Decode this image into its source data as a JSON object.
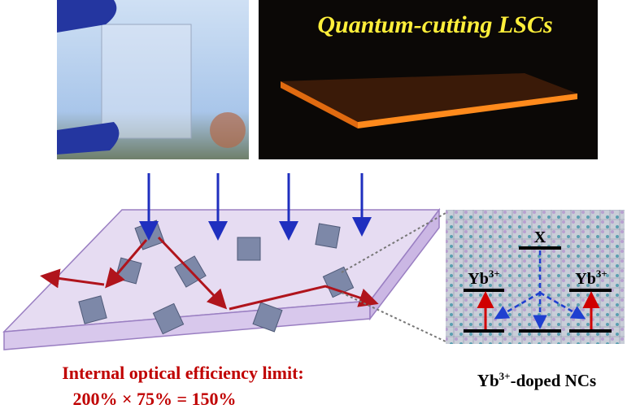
{
  "photo_title": "Quantum-cutting LSCs",
  "energy_diagram": {
    "top_level": "X",
    "left_level": {
      "base": "Yb",
      "sup": "3+"
    },
    "right_level": {
      "base": "Yb",
      "sup": "3+"
    }
  },
  "caption_right": {
    "base": "Yb",
    "sup": "3+",
    "rest": "-doped NCs"
  },
  "efficiency": {
    "line1": "Internal optical efficiency limit:",
    "line2": "200% × 75% = 150%"
  }
}
